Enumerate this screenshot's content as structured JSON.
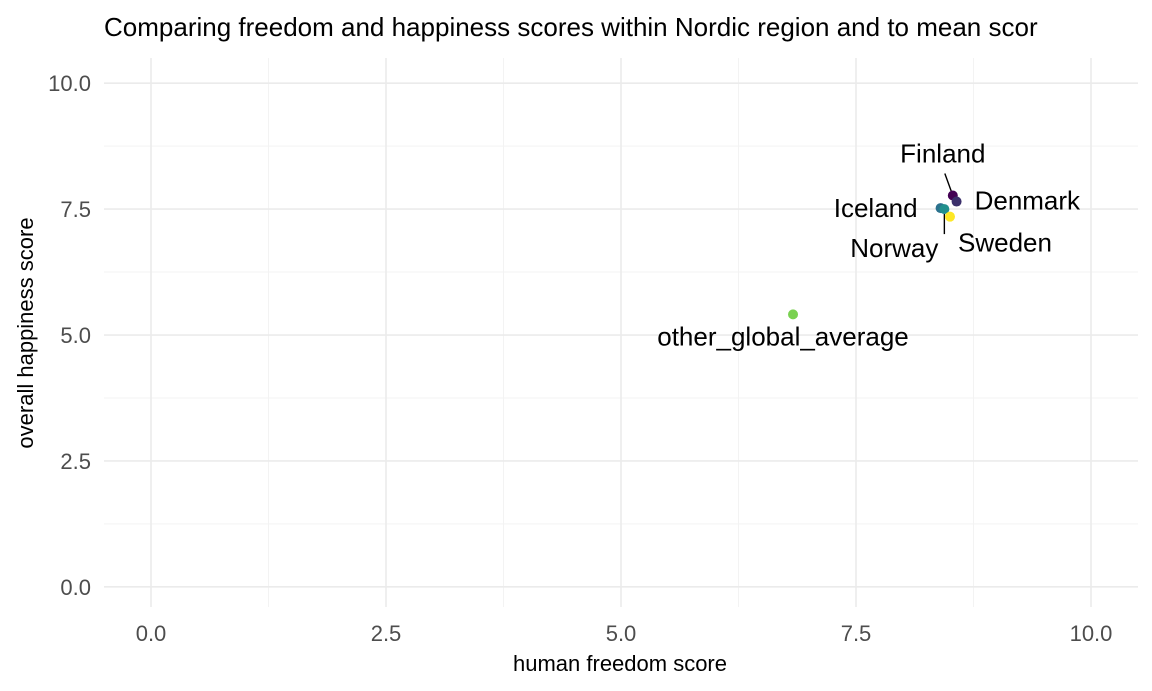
{
  "chart_data": {
    "type": "scatter",
    "title": "Comparing freedom and happiness scores within Nordic region and to mean scor",
    "xlabel": "human freedom score",
    "ylabel": "overall happiness score",
    "xlim": [
      -0.5,
      10.5
    ],
    "ylim": [
      -0.4,
      10.5
    ],
    "x_ticks": [
      0.0,
      2.5,
      5.0,
      7.5,
      10.0
    ],
    "y_ticks": [
      0.0,
      2.5,
      5.0,
      7.5,
      10.0
    ],
    "x_tick_labels": [
      "0.0",
      "2.5",
      "5.0",
      "7.5",
      "10.0"
    ],
    "y_tick_labels": [
      "0.0",
      "2.5",
      "5.0",
      "7.5",
      "10.0"
    ],
    "grid": true,
    "legend": "none",
    "points": [
      {
        "label": "Finland",
        "x": 8.53,
        "y": 7.77,
        "color": "#440154"
      },
      {
        "label": "Denmark",
        "x": 8.57,
        "y": 7.65,
        "color": "#3b2f6b"
      },
      {
        "label": "Iceland",
        "x": 8.4,
        "y": 7.52,
        "color": "#2c728e"
      },
      {
        "label": "Norway",
        "x": 8.44,
        "y": 7.5,
        "color": "#21908d"
      },
      {
        "label": "Sweden",
        "x": 8.5,
        "y": 7.35,
        "color": "#fde725"
      },
      {
        "label": "other_global_average",
        "x": 6.83,
        "y": 5.41,
        "color": "#7ad151"
      }
    ]
  }
}
